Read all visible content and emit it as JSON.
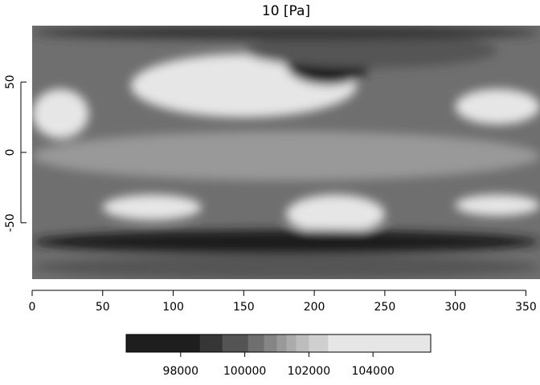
{
  "chart_data": {
    "type": "heatmap",
    "title": "10 [Pa]",
    "xlabel": "",
    "ylabel": "",
    "xlim": [
      0,
      360
    ],
    "ylim": [
      -90,
      90
    ],
    "x_ticks": [
      0,
      50,
      100,
      150,
      200,
      250,
      300,
      350
    ],
    "y_ticks": [
      -50,
      0,
      50
    ],
    "grid": false,
    "field_description": "Global sea-level pressure field on a longitude-latitude grid, shaded in grey levels",
    "regions": [
      {
        "name": "north-pacific-high",
        "lon": [
          70,
          230
        ],
        "lat": [
          25,
          70
        ],
        "value": 104800
      },
      {
        "name": "arctic-low",
        "lon": [
          180,
          240
        ],
        "lat": [
          48,
          78
        ],
        "value": 97500
      },
      {
        "name": "aleutian-low-edge",
        "lon": [
          150,
          330
        ],
        "lat": [
          60,
          85
        ],
        "value": 99500
      },
      {
        "name": "north-atlantic-high",
        "lon": [
          300,
          360
        ],
        "lat": [
          20,
          45
        ],
        "value": 103800
      },
      {
        "name": "north-africa-high",
        "lon": [
          0,
          40
        ],
        "lat": [
          10,
          45
        ],
        "value": 103200
      },
      {
        "name": "tropical-band",
        "lon": [
          0,
          360
        ],
        "lat": [
          -20,
          15
        ],
        "value": 101000
      },
      {
        "name": "south-pacific-high",
        "lon": [
          180,
          250
        ],
        "lat": [
          -58,
          -30
        ],
        "value": 104600
      },
      {
        "name": "south-indian-high",
        "lon": [
          50,
          120
        ],
        "lat": [
          -48,
          -30
        ],
        "value": 104300
      },
      {
        "name": "south-atlantic-high",
        "lon": [
          300,
          360
        ],
        "lat": [
          -45,
          -30
        ],
        "value": 103800
      },
      {
        "name": "southern-ocean-low",
        "lon": [
          0,
          360
        ],
        "lat": [
          -72,
          -55
        ],
        "value": 97200
      },
      {
        "name": "antarctic-rim",
        "lon": [
          0,
          360
        ],
        "lat": [
          -90,
          -73
        ],
        "value": 99500
      },
      {
        "name": "arctic-rim",
        "lon": [
          0,
          360
        ],
        "lat": [
          80,
          90
        ],
        "value": 99000
      }
    ],
    "colorbar": {
      "range": [
        96300,
        105800
      ],
      "ticks": [
        98000,
        100000,
        102000,
        104000
      ],
      "tick_labels": [
        "98000",
        "100000",
        "102000",
        "104000"
      ],
      "levels": [
        {
          "from": 96300,
          "to": 98600,
          "color": "#1e1e1e"
        },
        {
          "from": 98600,
          "to": 99300,
          "color": "#363636"
        },
        {
          "from": 99300,
          "to": 100100,
          "color": "#545454"
        },
        {
          "from": 100100,
          "to": 100600,
          "color": "#6f6f6f"
        },
        {
          "from": 100600,
          "to": 101000,
          "color": "#858585"
        },
        {
          "from": 101000,
          "to": 101300,
          "color": "#999999"
        },
        {
          "from": 101300,
          "to": 101600,
          "color": "#ababab"
        },
        {
          "from": 101600,
          "to": 102000,
          "color": "#bdbdbd"
        },
        {
          "from": 102000,
          "to": 102600,
          "color": "#cfcfcf"
        },
        {
          "from": 102600,
          "to": 105800,
          "color": "#e6e6e6"
        }
      ]
    }
  }
}
